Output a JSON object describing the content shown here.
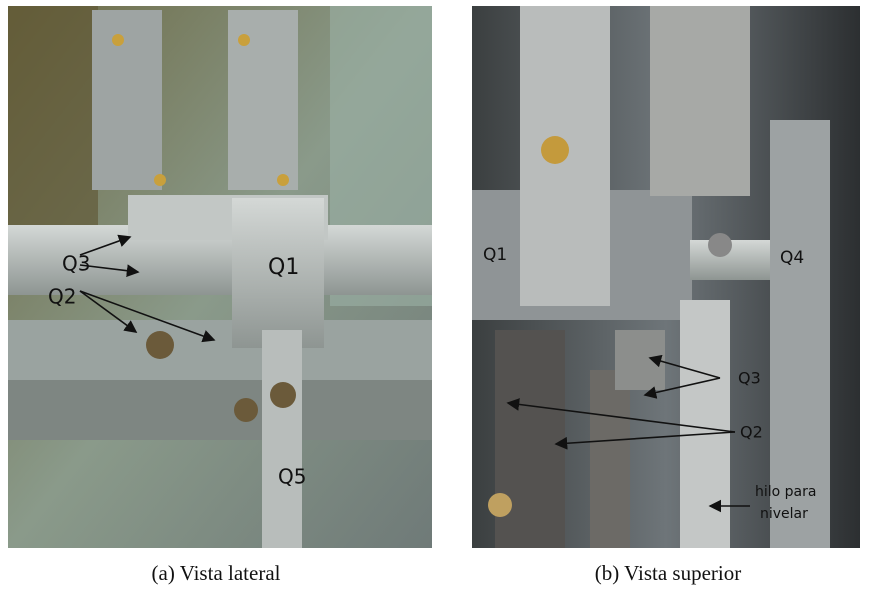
{
  "panels": [
    {
      "caption": "(a) Vista lateral",
      "labels": [
        "Q3",
        "Q2",
        "Q1",
        "Q5"
      ]
    },
    {
      "caption": "(b) Vista superior",
      "labels": [
        "Q1",
        "Q4",
        "Q3",
        "Q2"
      ],
      "note": [
        "hilo para",
        "nivelar"
      ]
    }
  ]
}
